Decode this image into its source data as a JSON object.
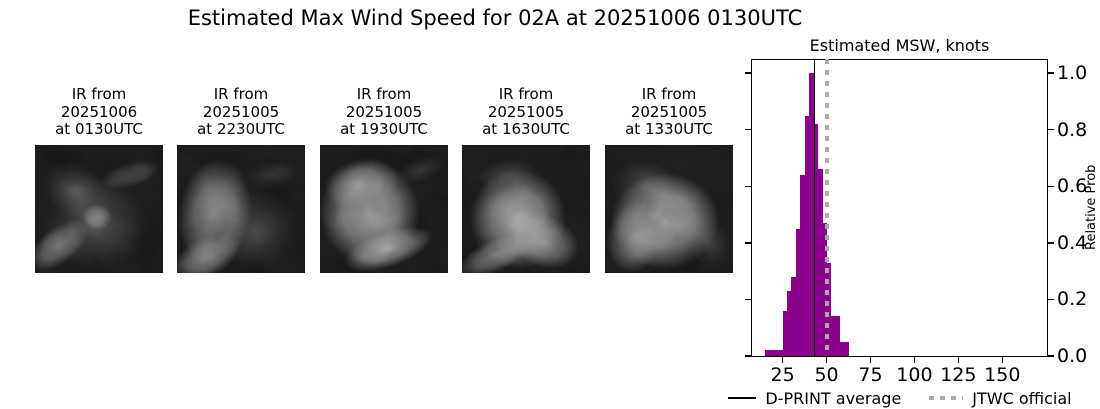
{
  "figure": {
    "title": "Estimated Max Wind Speed for 02A at 20251006 0130UTC"
  },
  "ir_frames": [
    {
      "lines": [
        "IR from",
        "20251006",
        "at 0130UTC"
      ]
    },
    {
      "lines": [
        "IR from",
        "20251005",
        "at 2230UTC"
      ]
    },
    {
      "lines": [
        "IR from",
        "20251005",
        "at 1930UTC"
      ]
    },
    {
      "lines": [
        "IR from",
        "20251005",
        "at 1630UTC"
      ]
    },
    {
      "lines": [
        "IR from",
        "20251005",
        "at 1330UTC"
      ]
    }
  ],
  "chart_data": {
    "type": "bar",
    "title": "Estimated MSW, knots",
    "xlabel": "",
    "ylabel": "Relative Prob",
    "bins": {
      "start": 15,
      "width": 2.5
    },
    "values": [
      0.02,
      0.02,
      0.02,
      0.02,
      0.16,
      0.23,
      0.28,
      0.45,
      0.64,
      0.85,
      1.0,
      0.82,
      0.66,
      0.47,
      0.33,
      0.14,
      0.14,
      0.05,
      0.05
    ],
    "x_ticks": [
      25,
      50,
      75,
      100,
      125,
      150
    ],
    "y_ticks": [
      0.0,
      0.2,
      0.4,
      0.6,
      0.8,
      1.0
    ],
    "xlim": [
      7,
      176
    ],
    "ylim": [
      0,
      1.05
    ],
    "grid": false,
    "legend_position": "below",
    "bar_color": "#8B008B",
    "dprint_average_knots": 43,
    "jtwc_official_knots": 50,
    "dprint_line_color": "#000000",
    "jtwc_line_color": "#ababab",
    "legend": [
      {
        "label": "D-PRINT average"
      },
      {
        "label": "JTWC official"
      }
    ]
  }
}
